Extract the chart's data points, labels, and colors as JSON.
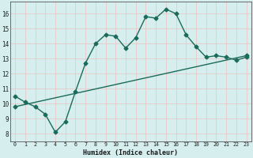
{
  "xlabel": "Humidex (Indice chaleur)",
  "ylabel": "",
  "bg_color": "#d6eeee",
  "grid_color": "#c8dede",
  "line_color": "#1a6b5a",
  "xlim": [
    -0.5,
    23.5
  ],
  "ylim": [
    7.5,
    16.8
  ],
  "yticks": [
    8,
    9,
    10,
    11,
    12,
    13,
    14,
    15,
    16
  ],
  "xticks": [
    0,
    1,
    2,
    3,
    4,
    5,
    6,
    7,
    8,
    9,
    10,
    11,
    12,
    13,
    14,
    15,
    16,
    17,
    18,
    19,
    20,
    21,
    22,
    23
  ],
  "curve1_x": [
    0,
    1,
    2,
    3,
    4,
    5,
    6,
    7,
    8,
    9,
    10,
    11,
    12,
    13,
    14,
    15,
    16,
    17,
    18,
    19,
    20,
    21,
    22,
    23
  ],
  "curve1_y": [
    10.5,
    10.1,
    9.8,
    9.3,
    8.1,
    8.8,
    10.8,
    12.7,
    14.0,
    14.6,
    14.5,
    13.7,
    14.4,
    15.8,
    15.7,
    16.3,
    16.0,
    14.6,
    13.8,
    13.1,
    13.2,
    13.1,
    12.9,
    13.1
  ],
  "curve2_x": [
    0,
    23
  ],
  "curve2_y": [
    9.8,
    13.2
  ],
  "marker": "D",
  "markersize": 2.5,
  "linewidth": 1.0
}
